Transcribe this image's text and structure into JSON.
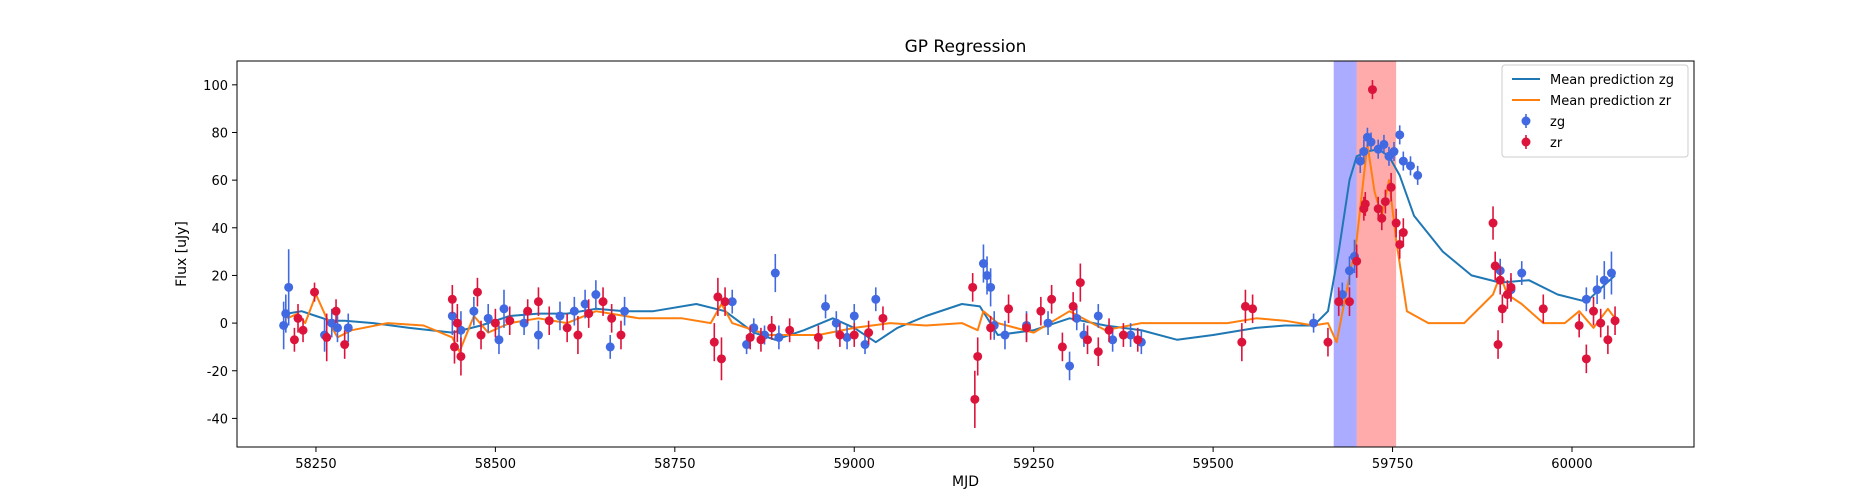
{
  "chart_data": {
    "type": "scatter",
    "title": "GP Regression",
    "xlabel": "MJD",
    "ylabel": "Flux [uJy]",
    "xlim": [
      58140,
      60170
    ],
    "ylim": [
      -52,
      110
    ],
    "x_ticks": [
      58250,
      58500,
      58750,
      59000,
      59250,
      59500,
      59750,
      60000
    ],
    "y_ticks": [
      -40,
      -20,
      0,
      20,
      40,
      60,
      80,
      100
    ],
    "grid": false,
    "legend_position": "top-right",
    "legend": [
      "Mean prediction zg",
      "Mean prediction zr",
      "zg",
      "zr"
    ],
    "shaded_regions": [
      {
        "series": "zg",
        "x": [
          59668,
          59700
        ],
        "color": "#0000ff"
      },
      {
        "series": "zr",
        "x": [
          59700,
          59755
        ],
        "color": "#ff0000"
      }
    ],
    "series": [
      {
        "name": "Mean prediction zg",
        "kind": "line",
        "color": "#1f77b4",
        "x": [
          58210,
          58230,
          58250,
          58270,
          58290,
          58330,
          58380,
          58440,
          58480,
          58520,
          58560,
          58600,
          58640,
          58680,
          58720,
          58780,
          58820,
          58860,
          58890,
          58930,
          58970,
          59000,
          59030,
          59060,
          59100,
          59150,
          59175,
          59200,
          59250,
          59300,
          59350,
          59400,
          59450,
          59500,
          59560,
          59600,
          59640,
          59660,
          59675,
          59690,
          59700,
          59715,
          59730,
          59745,
          59760,
          59780,
          59820,
          59860,
          59900,
          59940,
          59980,
          60020,
          60060
        ],
        "y": [
          4,
          5,
          3,
          1,
          1,
          0,
          -2,
          -4,
          -1,
          3,
          4,
          4,
          6,
          5,
          5,
          8,
          5,
          -4,
          -7,
          -3,
          2,
          -2,
          -8,
          -2,
          3,
          8,
          7,
          -5,
          -3,
          2,
          -1,
          -3,
          -7,
          -5,
          -2,
          -1,
          -1,
          5,
          30,
          60,
          70,
          72,
          73,
          70,
          62,
          45,
          30,
          20,
          17,
          18,
          12,
          9,
          20
        ]
      },
      {
        "name": "Mean prediction zr",
        "kind": "line",
        "color": "#ff7f0e",
        "x": [
          58210,
          58225,
          58235,
          58250,
          58265,
          58280,
          58300,
          58350,
          58400,
          58440,
          58450,
          58470,
          58490,
          58520,
          58560,
          58600,
          58640,
          58700,
          58760,
          58800,
          58815,
          58830,
          58880,
          58950,
          59000,
          59050,
          59100,
          59150,
          59165,
          59172,
          59180,
          59200,
          59250,
          59300,
          59350,
          59400,
          59450,
          59520,
          59560,
          59600,
          59640,
          59660,
          59672,
          59685,
          59700,
          59715,
          59725,
          59735,
          59745,
          59755,
          59770,
          59800,
          59850,
          59890,
          59900,
          59910,
          59930,
          59960,
          59990,
          60010,
          60030,
          60050,
          60060
        ],
        "y": [
          2,
          4,
          0,
          12,
          2,
          -6,
          -3,
          0,
          -1,
          -6,
          -12,
          3,
          -4,
          0,
          2,
          0,
          5,
          2,
          2,
          0,
          8,
          0,
          -5,
          -5,
          -2,
          0,
          -1,
          0,
          -2,
          -3,
          5,
          0,
          -4,
          5,
          -3,
          0,
          0,
          0,
          2,
          1,
          -1,
          0,
          -8,
          12,
          35,
          75,
          55,
          45,
          60,
          35,
          5,
          0,
          0,
          12,
          20,
          12,
          8,
          0,
          0,
          5,
          -2,
          6,
          2
        ]
      },
      {
        "name": "zg",
        "kind": "errorbar",
        "color": "#4169e1",
        "points": [
          [
            58205,
            -1,
            10
          ],
          [
            58208,
            4,
            8
          ],
          [
            58212,
            15,
            16
          ],
          [
            58262,
            -5,
            7
          ],
          [
            58272,
            0,
            6
          ],
          [
            58280,
            -2,
            6
          ],
          [
            58295,
            -2,
            6
          ],
          [
            58440,
            3,
            8
          ],
          [
            58452,
            -3,
            8
          ],
          [
            58470,
            5,
            6
          ],
          [
            58490,
            2,
            6
          ],
          [
            58505,
            -7,
            6
          ],
          [
            58512,
            6,
            8
          ],
          [
            58540,
            0,
            5
          ],
          [
            58560,
            -5,
            6
          ],
          [
            58590,
            3,
            6
          ],
          [
            58610,
            5,
            6
          ],
          [
            58625,
            8,
            6
          ],
          [
            58640,
            12,
            6
          ],
          [
            58660,
            -10,
            5
          ],
          [
            58680,
            5,
            6
          ],
          [
            58830,
            9,
            5
          ],
          [
            58850,
            -9,
            4
          ],
          [
            58860,
            -2,
            4
          ],
          [
            58875,
            -5,
            4
          ],
          [
            58890,
            21,
            8
          ],
          [
            58895,
            -6,
            5
          ],
          [
            58960,
            7,
            5
          ],
          [
            58975,
            0,
            5
          ],
          [
            58990,
            -6,
            5
          ],
          [
            59000,
            3,
            5
          ],
          [
            59015,
            -9,
            4
          ],
          [
            59030,
            10,
            5
          ],
          [
            59180,
            25,
            8
          ],
          [
            59185,
            20,
            8
          ],
          [
            59190,
            15,
            8
          ],
          [
            59195,
            -1,
            6
          ],
          [
            59210,
            -5,
            6
          ],
          [
            59240,
            -1,
            6
          ],
          [
            59270,
            0,
            5
          ],
          [
            59300,
            -18,
            6
          ],
          [
            59310,
            2,
            5
          ],
          [
            59320,
            -5,
            5
          ],
          [
            59340,
            3,
            5
          ],
          [
            59360,
            -7,
            5
          ],
          [
            59385,
            -5,
            5
          ],
          [
            59400,
            -8,
            5
          ],
          [
            59640,
            0,
            4
          ],
          [
            59680,
            12,
            5
          ],
          [
            59690,
            22,
            6
          ],
          [
            59697,
            28,
            7
          ],
          [
            59705,
            68,
            5
          ],
          [
            59710,
            72,
            5
          ],
          [
            59715,
            78,
            4
          ],
          [
            59720,
            76,
            4
          ],
          [
            59730,
            73,
            4
          ],
          [
            59738,
            75,
            4
          ],
          [
            59745,
            70,
            4
          ],
          [
            59752,
            72,
            4
          ],
          [
            59760,
            79,
            4
          ],
          [
            59765,
            68,
            4
          ],
          [
            59775,
            66,
            4
          ],
          [
            59785,
            62,
            4
          ],
          [
            59900,
            22,
            5
          ],
          [
            59915,
            14,
            5
          ],
          [
            59930,
            21,
            5
          ],
          [
            60020,
            10,
            5
          ],
          [
            60035,
            14,
            6
          ],
          [
            60045,
            18,
            8
          ],
          [
            60055,
            21,
            9
          ]
        ]
      },
      {
        "name": "zr",
        "kind": "errorbar",
        "color": "#dc143c",
        "points": [
          [
            58220,
            -7,
            5
          ],
          [
            58225,
            2,
            6
          ],
          [
            58232,
            -3,
            5
          ],
          [
            58248,
            13,
            4
          ],
          [
            58265,
            -6,
            10
          ],
          [
            58278,
            5,
            5
          ],
          [
            58290,
            -9,
            6
          ],
          [
            58440,
            10,
            6
          ],
          [
            58443,
            -10,
            7
          ],
          [
            58447,
            0,
            8
          ],
          [
            58452,
            -14,
            8
          ],
          [
            58475,
            13,
            6
          ],
          [
            58480,
            -5,
            6
          ],
          [
            58500,
            0,
            6
          ],
          [
            58520,
            1,
            6
          ],
          [
            58545,
            5,
            5
          ],
          [
            58560,
            9,
            6
          ],
          [
            58575,
            1,
            6
          ],
          [
            58600,
            -2,
            6
          ],
          [
            58615,
            -5,
            8
          ],
          [
            58630,
            4,
            6
          ],
          [
            58650,
            9,
            6
          ],
          [
            58662,
            2,
            6
          ],
          [
            58675,
            -5,
            6
          ],
          [
            58805,
            -8,
            8
          ],
          [
            58810,
            11,
            8
          ],
          [
            58815,
            -15,
            9
          ],
          [
            58820,
            9,
            6
          ],
          [
            58855,
            -6,
            5
          ],
          [
            58870,
            -7,
            5
          ],
          [
            58885,
            -2,
            5
          ],
          [
            58910,
            -3,
            5
          ],
          [
            58950,
            -6,
            5
          ],
          [
            58980,
            -5,
            5
          ],
          [
            59000,
            -5,
            5
          ],
          [
            59020,
            -4,
            5
          ],
          [
            59040,
            2,
            5
          ],
          [
            59165,
            15,
            6
          ],
          [
            59168,
            -32,
            12
          ],
          [
            59172,
            -14,
            8
          ],
          [
            59190,
            -2,
            5
          ],
          [
            59215,
            6,
            6
          ],
          [
            59240,
            -2,
            6
          ],
          [
            59260,
            5,
            6
          ],
          [
            59275,
            10,
            6
          ],
          [
            59290,
            -10,
            6
          ],
          [
            59305,
            7,
            6
          ],
          [
            59315,
            17,
            8
          ],
          [
            59325,
            -7,
            6
          ],
          [
            59340,
            -12,
            6
          ],
          [
            59355,
            -3,
            5
          ],
          [
            59375,
            -5,
            5
          ],
          [
            59395,
            -7,
            5
          ],
          [
            59540,
            -8,
            8
          ],
          [
            59545,
            7,
            7
          ],
          [
            59555,
            6,
            6
          ],
          [
            59660,
            -8,
            6
          ],
          [
            59675,
            9,
            6
          ],
          [
            59690,
            9,
            6
          ],
          [
            59700,
            26,
            7
          ],
          [
            59710,
            48,
            5
          ],
          [
            59712,
            50,
            5
          ],
          [
            59722,
            98,
            4
          ],
          [
            59730,
            48,
            5
          ],
          [
            59735,
            44,
            5
          ],
          [
            59740,
            51,
            5
          ],
          [
            59748,
            57,
            6
          ],
          [
            59755,
            42,
            6
          ],
          [
            59760,
            33,
            6
          ],
          [
            59765,
            38,
            6
          ],
          [
            59890,
            42,
            7
          ],
          [
            59893,
            24,
            6
          ],
          [
            59897,
            -9,
            6
          ],
          [
            59900,
            18,
            6
          ],
          [
            59903,
            6,
            6
          ],
          [
            59910,
            12,
            6
          ],
          [
            59915,
            15,
            6
          ],
          [
            59960,
            6,
            6
          ],
          [
            60010,
            -1,
            5
          ],
          [
            60020,
            -15,
            6
          ],
          [
            60030,
            5,
            6
          ],
          [
            60040,
            0,
            6
          ],
          [
            60050,
            -7,
            6
          ],
          [
            60060,
            1,
            6
          ]
        ]
      }
    ]
  }
}
